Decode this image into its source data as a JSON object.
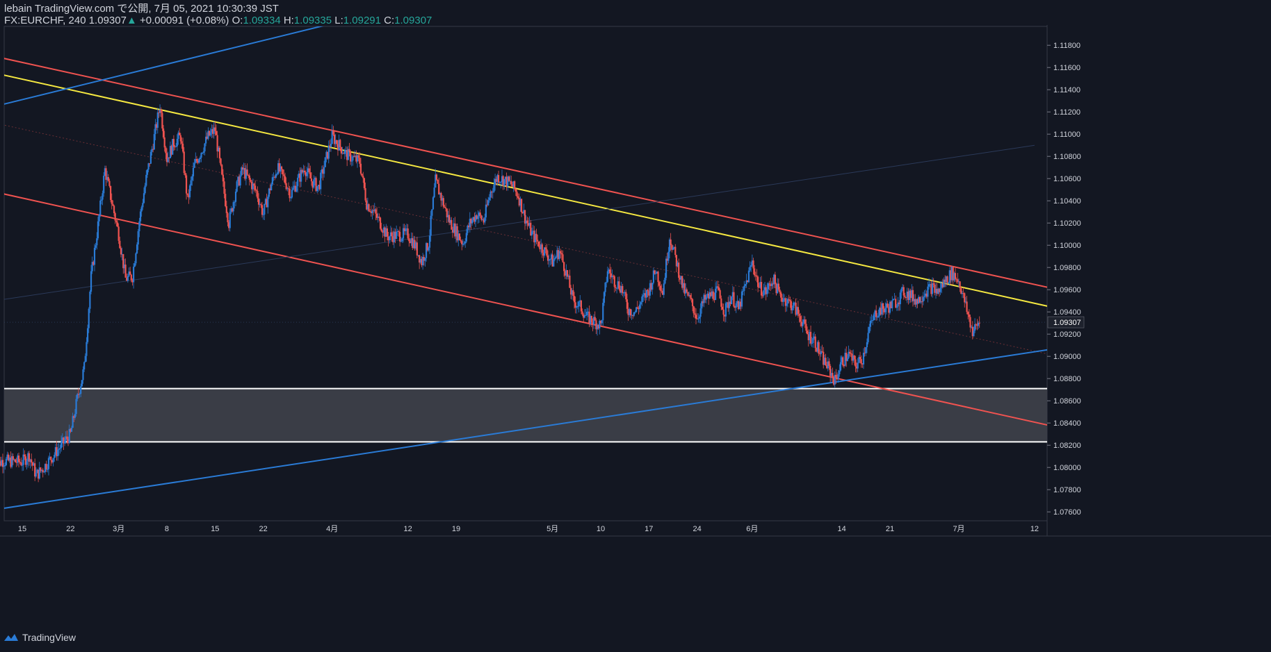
{
  "header": {
    "author_line": "lebain TradingView.com で公開, 7月 05, 2021 10:30:39 JST",
    "symbol": "FX:EURCHF, 240",
    "last": "1.09307",
    "change_arrow": "▲",
    "change": "+0.00091 (+0.08%)",
    "o_label": "O:",
    "o": "1.09334",
    "h_label": "H:",
    "h": "1.09335",
    "l_label": "L:",
    "l": "1.09291",
    "c_label": "C:",
    "c": "1.09307"
  },
  "footer": {
    "brand": "TradingView",
    "icon": "tradingview-logo-icon"
  },
  "colors": {
    "bg": "#131722",
    "up": "#2a7bd6",
    "down": "#ef5350",
    "axis": "#363a45",
    "text": "#d1d4dc",
    "channel": "#f05350",
    "trend": "#f5e841",
    "support_line": "#2a7bd6",
    "zone": "#3a3d46"
  },
  "chart_data": {
    "type": "candlestick",
    "symbol": "EURCHF",
    "interval": "240",
    "x_ticks": [
      "15",
      "22",
      "3月",
      "8",
      "15",
      "22",
      "4月",
      "12",
      "19",
      "5月",
      "10",
      "17",
      "24",
      "6月",
      "14",
      "21",
      "7月",
      "12"
    ],
    "x_tick_dates": [
      "2021-02-15",
      "2021-02-22",
      "2021-03-01",
      "2021-03-08",
      "2021-03-15",
      "2021-03-22",
      "2021-04-01",
      "2021-04-12",
      "2021-04-19",
      "2021-05-03",
      "2021-05-10",
      "2021-05-17",
      "2021-05-24",
      "2021-06-01",
      "2021-06-14",
      "2021-06-21",
      "2021-07-01",
      "2021-07-12"
    ],
    "y_ticks": [
      "1.11800",
      "1.11600",
      "1.11400",
      "1.11200",
      "1.11000",
      "1.10800",
      "1.10600",
      "1.10400",
      "1.10200",
      "1.10000",
      "1.09800",
      "1.09600",
      "1.09400",
      "1.09200",
      "1.09000",
      "1.08800",
      "1.08600",
      "1.08400",
      "1.08200",
      "1.08000",
      "1.07800",
      "1.07600"
    ],
    "ylim": [
      1.0752,
      1.1197
    ],
    "last_price_label": "1.09307",
    "last_price": 1.09307,
    "zone": {
      "low": 1.0823,
      "high": 1.0871
    },
    "path_points": [
      [
        "2021-02-11",
        1.0799
      ],
      [
        "2021-02-12",
        1.0806
      ],
      [
        "2021-02-15",
        1.0805
      ],
      [
        "2021-02-16",
        1.0811
      ],
      [
        "2021-02-17",
        1.0793
      ],
      [
        "2021-02-18",
        1.0799
      ],
      [
        "2021-02-19",
        1.0807
      ],
      [
        "2021-02-22",
        1.083
      ],
      [
        "2021-02-23",
        1.0862
      ],
      [
        "2021-02-24",
        1.089
      ],
      [
        "2021-02-25",
        1.0972
      ],
      [
        "2021-02-26",
        1.1018
      ],
      [
        "2021-02-27",
        1.1068
      ],
      [
        "2021-03-01",
        1.101
      ],
      [
        "2021-03-02",
        1.097
      ],
      [
        "2021-03-03",
        1.0972
      ],
      [
        "2021-03-04",
        1.1022
      ],
      [
        "2021-03-05",
        1.106
      ],
      [
        "2021-03-06",
        1.1092
      ],
      [
        "2021-03-07",
        1.1126
      ],
      [
        "2021-03-08",
        1.1078
      ],
      [
        "2021-03-09",
        1.1092
      ],
      [
        "2021-03-10",
        1.1098
      ],
      [
        "2021-03-11",
        1.104
      ],
      [
        "2021-03-12",
        1.1072
      ],
      [
        "2021-03-14",
        1.1098
      ],
      [
        "2021-03-15",
        1.1104
      ],
      [
        "2021-03-16",
        1.106
      ],
      [
        "2021-03-17",
        1.102
      ],
      [
        "2021-03-18",
        1.105
      ],
      [
        "2021-03-19",
        1.1068
      ],
      [
        "2021-03-21",
        1.1048
      ],
      [
        "2021-03-22",
        1.1028
      ],
      [
        "2021-03-23",
        1.1052
      ],
      [
        "2021-03-24",
        1.107
      ],
      [
        "2021-03-25",
        1.106
      ],
      [
        "2021-03-26",
        1.1046
      ],
      [
        "2021-03-28",
        1.107
      ],
      [
        "2021-03-29",
        1.1058
      ],
      [
        "2021-03-30",
        1.1052
      ],
      [
        "2021-04-01",
        1.1098
      ],
      [
        "2021-04-02",
        1.109
      ],
      [
        "2021-04-03",
        1.1082
      ],
      [
        "2021-04-05",
        1.1075
      ],
      [
        "2021-04-06",
        1.1038
      ],
      [
        "2021-04-07",
        1.103
      ],
      [
        "2021-04-08",
        1.102
      ],
      [
        "2021-04-09",
        1.1008
      ],
      [
        "2021-04-12",
        1.101
      ],
      [
        "2021-04-13",
        1.1
      ],
      [
        "2021-04-14",
        1.0985
      ],
      [
        "2021-04-15",
        1.1002
      ],
      [
        "2021-04-16",
        1.1058
      ],
      [
        "2021-04-17",
        1.104
      ],
      [
        "2021-04-18",
        1.1022
      ],
      [
        "2021-04-19",
        1.1012
      ],
      [
        "2021-04-20",
        1.1002
      ],
      [
        "2021-04-21",
        1.102
      ],
      [
        "2021-04-22",
        1.1028
      ],
      [
        "2021-04-23",
        1.1022
      ],
      [
        "2021-04-24",
        1.1048
      ],
      [
        "2021-04-25",
        1.1062
      ],
      [
        "2021-04-27",
        1.1055
      ],
      [
        "2021-04-28",
        1.1045
      ],
      [
        "2021-04-29",
        1.1025
      ],
      [
        "2021-04-30",
        1.101
      ],
      [
        "2021-05-03",
        1.0985
      ],
      [
        "2021-05-04",
        1.0995
      ],
      [
        "2021-05-05",
        1.0975
      ],
      [
        "2021-05-06",
        1.095
      ],
      [
        "2021-05-07",
        1.0945
      ],
      [
        "2021-05-08",
        1.0935
      ],
      [
        "2021-05-10",
        1.0928
      ],
      [
        "2021-05-11",
        1.0978
      ],
      [
        "2021-05-12",
        1.0968
      ],
      [
        "2021-05-13",
        1.0962
      ],
      [
        "2021-05-14",
        1.0942
      ],
      [
        "2021-05-15",
        1.094
      ],
      [
        "2021-05-16",
        1.095
      ],
      [
        "2021-05-17",
        1.096
      ],
      [
        "2021-05-18",
        1.0978
      ],
      [
        "2021-05-19",
        1.0958
      ],
      [
        "2021-05-20",
        1.1008
      ],
      [
        "2021-05-21",
        1.0985
      ],
      [
        "2021-05-22",
        1.096
      ],
      [
        "2021-05-23",
        1.095
      ],
      [
        "2021-05-24",
        1.0935
      ],
      [
        "2021-05-25",
        1.095
      ],
      [
        "2021-05-26",
        1.0955
      ],
      [
        "2021-05-27",
        1.0958
      ],
      [
        "2021-05-28",
        1.094
      ],
      [
        "2021-05-29",
        1.0955
      ],
      [
        "2021-05-30",
        1.0942
      ],
      [
        "2021-06-01",
        1.0985
      ],
      [
        "2021-06-02",
        1.0962
      ],
      [
        "2021-06-03",
        1.0958
      ],
      [
        "2021-06-04",
        1.097
      ],
      [
        "2021-06-05",
        1.0955
      ],
      [
        "2021-06-07",
        1.0945
      ],
      [
        "2021-06-08",
        1.0935
      ],
      [
        "2021-06-09",
        1.092
      ],
      [
        "2021-06-10",
        1.0915
      ],
      [
        "2021-06-11",
        1.09
      ],
      [
        "2021-06-12",
        1.089
      ],
      [
        "2021-06-13",
        1.0878
      ],
      [
        "2021-06-14",
        1.0895
      ],
      [
        "2021-06-15",
        1.0902
      ],
      [
        "2021-06-16",
        1.0892
      ],
      [
        "2021-06-17",
        1.0898
      ],
      [
        "2021-06-18",
        1.0925
      ],
      [
        "2021-06-19",
        1.094
      ],
      [
        "2021-06-21",
        1.0945
      ],
      [
        "2021-06-22",
        1.095
      ],
      [
        "2021-06-23",
        1.0958
      ],
      [
        "2021-06-24",
        1.0955
      ],
      [
        "2021-06-25",
        1.095
      ],
      [
        "2021-06-26",
        1.0958
      ],
      [
        "2021-06-27",
        1.0962
      ],
      [
        "2021-06-28",
        1.0958
      ],
      [
        "2021-06-29",
        1.0968
      ],
      [
        "2021-06-30",
        1.0975
      ],
      [
        "2021-07-01",
        1.0968
      ],
      [
        "2021-07-02",
        1.0945
      ],
      [
        "2021-07-03",
        1.0922
      ],
      [
        "2021-07-04",
        1.0931
      ]
    ],
    "trendlines": [
      {
        "name": "channel-upper",
        "color": "#f05350",
        "from": [
          "2021-02-11",
          1.117
        ],
        "to": [
          "2021-07-14",
          1.0962
        ]
      },
      {
        "name": "channel-lower",
        "color": "#f05350",
        "from": [
          "2021-02-11",
          1.1048
        ],
        "to": [
          "2021-07-14",
          1.0838
        ]
      },
      {
        "name": "channel-mid",
        "color": "#6b2f35",
        "from": [
          "2021-02-11",
          1.111
        ],
        "to": [
          "2021-07-14",
          1.0902
        ]
      },
      {
        "name": "yellow-trend",
        "color": "#f5e841",
        "from": [
          "2021-02-11",
          1.1155
        ],
        "to": [
          "2021-07-14",
          1.0945
        ]
      },
      {
        "name": "blue-support",
        "color": "#2a7bd6",
        "from": [
          "2021-02-11",
          1.0762
        ],
        "to": [
          "2021-07-14",
          1.0906
        ]
      },
      {
        "name": "blue-upper",
        "color": "#2a7bd6",
        "from": [
          "2021-02-11",
          1.1125
        ],
        "to": [
          "2021-03-31",
          1.1198
        ]
      },
      {
        "name": "faint-diagonal",
        "color": "#2b3a5a",
        "from": [
          "2021-02-11",
          1.095
        ],
        "to": [
          "2021-07-12",
          1.109
        ]
      }
    ],
    "grid": false
  }
}
